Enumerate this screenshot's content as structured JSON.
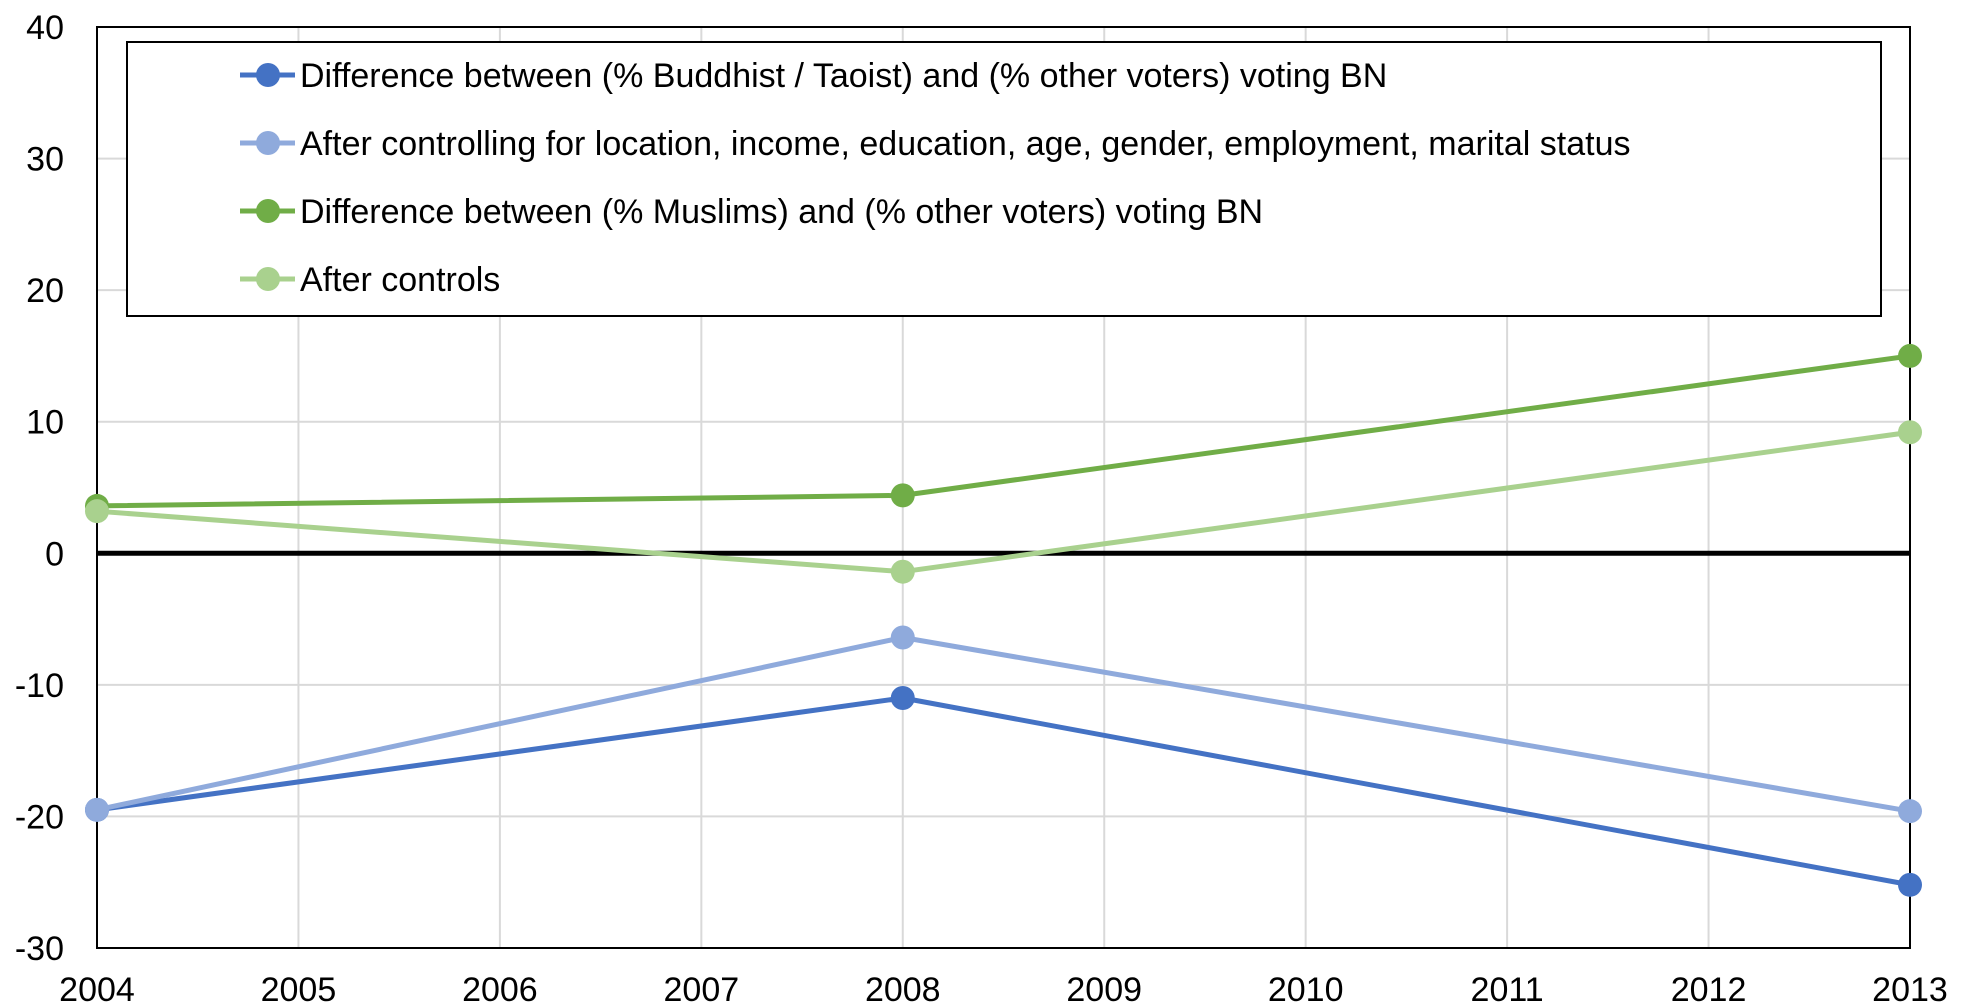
{
  "chart_data": {
    "type": "line",
    "title": "",
    "xlabel": "",
    "ylabel": "",
    "xlim": [
      2004,
      2013
    ],
    "ylim": [
      -30,
      40
    ],
    "x_ticks": [
      2004,
      2005,
      2006,
      2007,
      2008,
      2009,
      2010,
      2011,
      2012,
      2013
    ],
    "y_ticks": [
      -30,
      -20,
      -10,
      0,
      10,
      20,
      30,
      40
    ],
    "grid": true,
    "zero_line": true,
    "legend_position": "top",
    "series": [
      {
        "name": "Difference between (% Buddhist / Taoist) and (% other voters) voting BN",
        "color": "#4472C4",
        "x": [
          2004,
          2008,
          2013
        ],
        "values": [
          -19.5,
          -11.0,
          -25.2
        ]
      },
      {
        "name": "After controlling for location, income, education, age, gender, employment, marital status",
        "color": "#8FAADC",
        "x": [
          2004,
          2008,
          2013
        ],
        "values": [
          -19.5,
          -6.4,
          -19.6
        ]
      },
      {
        "name": "Difference between (% Muslims) and (% other voters) voting BN",
        "color": "#70AD47",
        "x": [
          2004,
          2008,
          2013
        ],
        "values": [
          3.6,
          4.4,
          15.0
        ]
      },
      {
        "name": "After controls",
        "color": "#A9D18E",
        "x": [
          2004,
          2008,
          2013
        ],
        "values": [
          3.2,
          -1.4,
          9.2
        ]
      }
    ]
  }
}
